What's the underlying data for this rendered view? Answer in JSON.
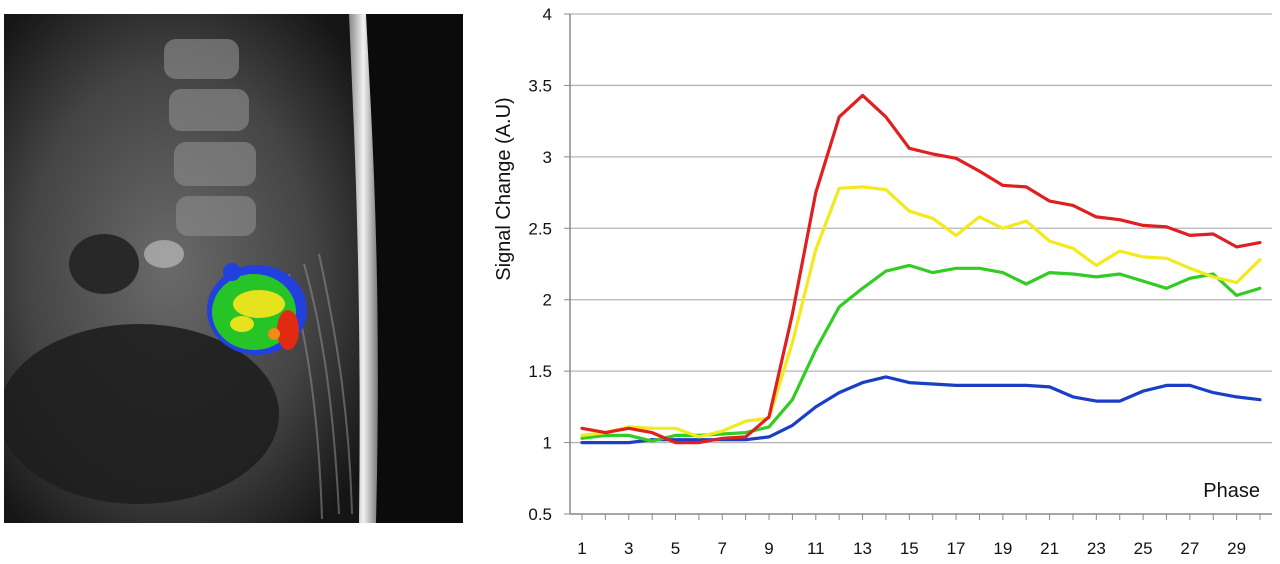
{
  "image_panel": {
    "icon": "mri-sagittal-perfusion-map"
  },
  "chart_data": {
    "type": "line",
    "ylabel": "Signal Change (A.U)",
    "xlabel": "Phase",
    "ylim": [
      0.5,
      4
    ],
    "yticks": [
      "0.5",
      "1",
      "1.5",
      "2",
      "2.5",
      "3",
      "3.5",
      "4"
    ],
    "xticks": [
      "1",
      "3",
      "5",
      "7",
      "9",
      "11",
      "13",
      "15",
      "17",
      "19",
      "21",
      "23",
      "25",
      "27",
      "29"
    ],
    "x": [
      1,
      2,
      3,
      4,
      5,
      6,
      7,
      8,
      9,
      10,
      11,
      12,
      13,
      14,
      15,
      16,
      17,
      18,
      19,
      20,
      21,
      22,
      23,
      24,
      25,
      26,
      27,
      28,
      29,
      30
    ],
    "grid": "horizontal",
    "legend": "none",
    "series": [
      {
        "color": "#1a3fc4",
        "values": [
          1.0,
          1.0,
          1.0,
          1.02,
          1.02,
          1.02,
          1.02,
          1.02,
          1.04,
          1.12,
          1.25,
          1.35,
          1.42,
          1.46,
          1.42,
          1.41,
          1.4,
          1.4,
          1.4,
          1.4,
          1.39,
          1.32,
          1.29,
          1.29,
          1.36,
          1.4,
          1.4,
          1.35,
          1.32,
          1.3
        ]
      },
      {
        "color": "#33cc22",
        "values": [
          1.03,
          1.05,
          1.05,
          1.01,
          1.05,
          1.05,
          1.06,
          1.07,
          1.11,
          1.3,
          1.65,
          1.95,
          2.08,
          2.2,
          2.24,
          2.19,
          2.22,
          2.22,
          2.19,
          2.11,
          2.19,
          2.18,
          2.16,
          2.18,
          2.13,
          2.08,
          2.15,
          2.18,
          2.03,
          2.08
        ]
      },
      {
        "color": "#f2ea1d",
        "values": [
          1.05,
          1.07,
          1.11,
          1.1,
          1.1,
          1.04,
          1.08,
          1.15,
          1.17,
          1.7,
          2.35,
          2.78,
          2.79,
          2.77,
          2.62,
          2.57,
          2.45,
          2.58,
          2.5,
          2.55,
          2.41,
          2.36,
          2.24,
          2.34,
          2.3,
          2.29,
          2.22,
          2.16,
          2.12,
          2.28
        ]
      },
      {
        "color": "#e02020",
        "values": [
          1.1,
          1.07,
          1.1,
          1.07,
          1.0,
          1.0,
          1.03,
          1.04,
          1.18,
          1.9,
          2.75,
          3.28,
          3.43,
          3.28,
          3.06,
          3.02,
          2.99,
          2.9,
          2.8,
          2.79,
          2.69,
          2.66,
          2.58,
          2.56,
          2.52,
          2.51,
          2.45,
          2.46,
          2.37,
          2.4
        ]
      }
    ]
  }
}
